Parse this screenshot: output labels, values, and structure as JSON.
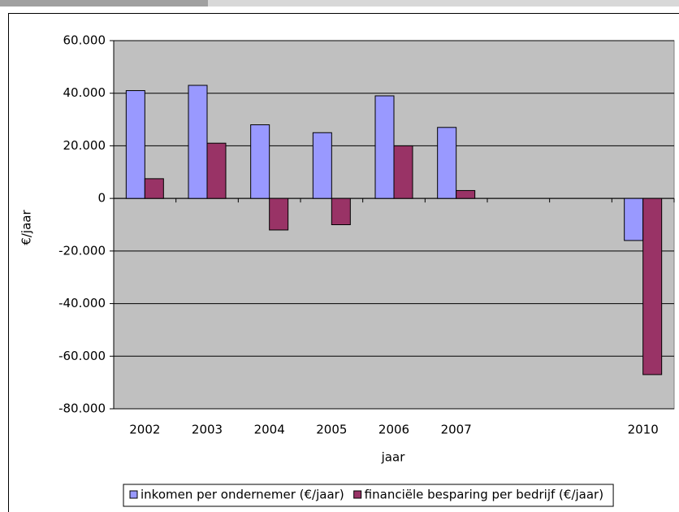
{
  "chart_data": {
    "type": "bar",
    "x_label": "jaar",
    "y_label": "€/jaar",
    "categories": [
      "2002",
      "2003",
      "2004",
      "2005",
      "2006",
      "2007",
      null,
      null,
      "2010"
    ],
    "series": [
      {
        "name": "inkomen per ondernemer (€/jaar)",
        "color": "#9999ff",
        "values": [
          41000,
          43000,
          28000,
          25000,
          39000,
          27000,
          null,
          null,
          -16000
        ]
      },
      {
        "name": "financiële besparing per bedrijf (€/jaar)",
        "color": "#993366",
        "values": [
          7500,
          21000,
          -12000,
          -10000,
          20000,
          3000,
          null,
          null,
          -67000
        ]
      }
    ],
    "ylim": [
      -80000,
      60000
    ],
    "yticks": [
      {
        "value": -80000,
        "label": "-80.000"
      },
      {
        "value": -60000,
        "label": "-60.000"
      },
      {
        "value": -40000,
        "label": "-40.000"
      },
      {
        "value": -20000,
        "label": "-20.000"
      },
      0,
      {
        "value": 20000,
        "label": "20.000"
      },
      {
        "value": 40000,
        "label": "40.000"
      },
      {
        "value": 60000,
        "label": "60.000"
      }
    ],
    "grid": true,
    "plot_background": "#c0c0c0",
    "legend": "bottom"
  }
}
